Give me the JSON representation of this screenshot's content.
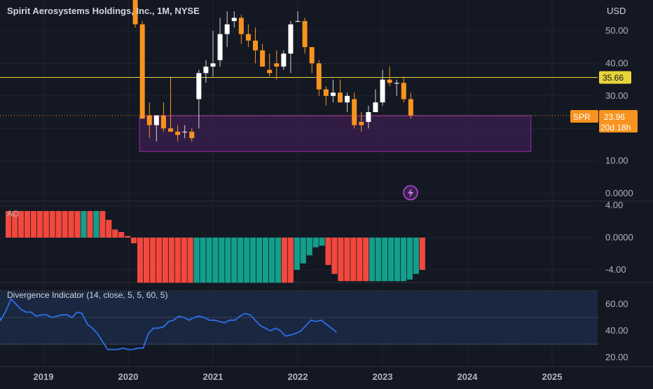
{
  "header": {
    "title": "Spirit Aerosystems Holdings, Inc., 1M, NYSE",
    "currency": "USD"
  },
  "colors": {
    "background": "#141823",
    "up": "#ffffff",
    "down": "#f7931e",
    "down_border": "#f7931e",
    "zone_fill": "#3b1f4f",
    "zone_stroke": "#9c27b0",
    "resistance": "#e6d43a",
    "price_tag": "#f7931e",
    "ao_up": "#139f8c",
    "ao_down": "#f2483d",
    "div_line": "#2f6ee8",
    "grid": "#1f2433",
    "axis_text": "#b2b5be"
  },
  "icons": {
    "lightning": "lightning-icon"
  },
  "price_axis": {
    "ticks": [
      "50.00",
      "40.00",
      "30.00",
      "10.00",
      "0.0000"
    ],
    "tick_values": [
      50,
      40,
      30,
      10,
      0
    ]
  },
  "resistance": {
    "value": 35.66,
    "label": "35.66"
  },
  "last_price": {
    "symbol": "SPR",
    "value": "23.96",
    "countdown": "20d 18h",
    "numeric": 23.96
  },
  "zone": {
    "top": 23.9,
    "bottom": 12.9,
    "start": "2020-03",
    "end": "2024-10"
  },
  "x_axis": {
    "labels": [
      "2019",
      "2020",
      "2021",
      "2022",
      "2023",
      "2024",
      "2025"
    ]
  },
  "ao": {
    "label": "AO",
    "ticks": [
      "4.00",
      "0.0000",
      "-4.00"
    ],
    "tick_values": [
      4,
      0,
      -4
    ]
  },
  "divergence": {
    "label": "Divergence Indicator (14, close, 5, 5, 60, 5)",
    "ticks": [
      "60.00",
      "40.00",
      "20.00"
    ],
    "tick_values": [
      60,
      40,
      20
    ],
    "upper_band": 70,
    "mid_band": 50,
    "lower_band": 30
  },
  "chart_data": [
    {
      "type": "candlestick",
      "title": "Spirit Aerosystems Holdings, Inc., 1M, NYSE",
      "ylabel": "USD",
      "ylim": [
        -1,
        57
      ],
      "dates": [
        "2020-02",
        "2020-03",
        "2020-04",
        "2020-05",
        "2020-06",
        "2020-07",
        "2020-08",
        "2020-09",
        "2020-10",
        "2020-11",
        "2020-12",
        "2021-01",
        "2021-02",
        "2021-03",
        "2021-04",
        "2021-05",
        "2021-06",
        "2021-07",
        "2021-08",
        "2021-09",
        "2021-10",
        "2021-11",
        "2021-12",
        "2022-01",
        "2022-02",
        "2022-03",
        "2022-04",
        "2022-05",
        "2022-06",
        "2022-07",
        "2022-08",
        "2022-09",
        "2022-10",
        "2022-11",
        "2022-12",
        "2023-01",
        "2023-02",
        "2023-03",
        "2023-04",
        "2023-05"
      ],
      "open": [
        60,
        52,
        24,
        21,
        24,
        20,
        19,
        19,
        19,
        29,
        37,
        39,
        41,
        49,
        53,
        54,
        49,
        47,
        44,
        38,
        40,
        39,
        43,
        53,
        53,
        45,
        40,
        32,
        30,
        31,
        28,
        29,
        22,
        22,
        25,
        28,
        35,
        34,
        34,
        29
      ],
      "high": [
        62,
        53,
        28,
        24,
        28,
        36,
        21,
        21,
        20,
        38,
        41,
        50,
        54,
        56,
        56,
        55,
        52,
        51,
        46,
        43,
        44,
        44,
        53,
        56,
        54,
        45,
        41,
        33,
        35,
        35,
        31,
        31,
        25,
        27,
        32,
        38,
        39,
        35,
        36,
        31
      ],
      "low": [
        51,
        23,
        17,
        16,
        19,
        19,
        16,
        17,
        16,
        20,
        34,
        36,
        39,
        45,
        51,
        46,
        45,
        40,
        39,
        36,
        35,
        38,
        37,
        53,
        43,
        37,
        30,
        27,
        28,
        28,
        25,
        20,
        19,
        20,
        25,
        27,
        33,
        30,
        28,
        23
      ],
      "close": [
        52,
        23,
        21,
        24,
        20,
        19,
        18,
        19,
        17,
        37,
        39,
        40,
        49,
        52,
        54,
        49,
        47,
        44,
        39,
        37,
        39,
        43,
        52,
        53,
        45,
        40,
        32,
        30,
        31,
        28,
        30,
        21,
        21,
        25,
        28,
        35,
        34,
        34,
        29,
        23.96
      ]
    },
    {
      "type": "bar",
      "title": "AO",
      "ylim": [
        -6,
        4.2
      ],
      "values": [
        3.3,
        3.3,
        3.3,
        3.3,
        3.3,
        3.3,
        3.3,
        3.3,
        3.3,
        3.3,
        3.3,
        3.3,
        3.3,
        3.3,
        3.3,
        3.3,
        2.2,
        1.0,
        0.7,
        0.2,
        -0.7,
        -5.6,
        -5.6,
        -5.6,
        -5.6,
        -5.6,
        -5.6,
        -5.6,
        -5.6,
        -5.6,
        -5.6,
        -5.6,
        -5.6,
        -5.6,
        -5.6,
        -5.6,
        -5.6,
        -5.6,
        -5.6,
        -5.6,
        -5.6,
        -5.6,
        -5.6,
        -5.6,
        -5.6,
        -5.6,
        -4.0,
        -3.2,
        -2.2,
        -1.2,
        -1.0,
        -3.4,
        -4.5,
        -5.4,
        -5.4,
        -5.4,
        -5.4,
        -5.4,
        -5.4,
        -5.4,
        -5.4,
        -5.4,
        -5.4,
        -5.4,
        -5.2,
        -4.5,
        -4.0
      ],
      "colors_seq": [
        "d",
        "d",
        "d",
        "d",
        "d",
        "d",
        "d",
        "d",
        "d",
        "d",
        "d",
        "d",
        "u",
        "d",
        "u",
        "d",
        "d",
        "d",
        "d",
        "d",
        "d",
        "d",
        "d",
        "d",
        "d",
        "d",
        "d",
        "d",
        "d",
        "d",
        "u",
        "u",
        "u",
        "u",
        "u",
        "u",
        "u",
        "u",
        "u",
        "u",
        "u",
        "u",
        "u",
        "u",
        "d",
        "d",
        "u",
        "u",
        "u",
        "u",
        "u",
        "d",
        "d",
        "d",
        "d",
        "d",
        "d",
        "d",
        "u",
        "u",
        "u",
        "u",
        "u",
        "u",
        "u",
        "u",
        "d"
      ]
    },
    {
      "type": "line",
      "title": "Divergence Indicator (14, close, 5, 5, 60, 5)",
      "ylim": [
        15,
        72
      ],
      "x_start": "2018-08",
      "values": [
        67,
        62,
        60,
        60,
        56,
        54,
        48,
        55,
        64,
        60,
        56,
        54,
        54,
        51,
        52,
        52,
        50,
        51,
        52,
        52,
        50,
        54,
        53,
        45,
        42,
        38,
        32,
        26,
        26,
        26,
        27,
        26,
        26,
        27,
        27,
        38,
        42,
        42,
        43,
        47,
        48,
        51,
        50,
        48,
        50,
        51,
        50,
        48,
        48,
        47,
        46,
        48,
        48,
        51,
        53,
        52,
        48,
        44,
        42,
        40,
        42,
        40,
        36,
        37,
        38,
        40,
        44,
        48,
        47,
        48,
        45,
        42,
        39
      ]
    }
  ]
}
